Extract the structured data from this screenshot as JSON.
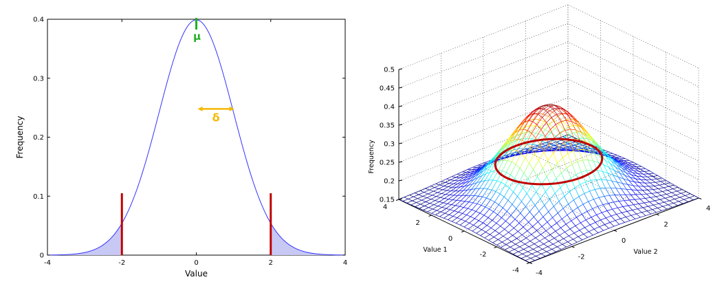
{
  "chart_data": [
    {
      "type": "line",
      "title": "",
      "xlabel": "Value",
      "ylabel": "Frequency",
      "xlim": [
        -4,
        4
      ],
      "ylim": [
        0,
        0.4
      ],
      "xticks": [
        "-4",
        "-2",
        "0",
        "2",
        "4"
      ],
      "yticks": [
        "0",
        "0.1",
        "0.2",
        "0.3",
        "0.4"
      ],
      "series": [
        {
          "function": "normal_pdf",
          "mean": 0,
          "sd": 1,
          "color": "#3232ff"
        }
      ],
      "shaded_tails": {
        "below": -2,
        "above": 2,
        "color": "#c8c8f5"
      },
      "vertical_markers": [
        {
          "x": -2,
          "y_top": 0.105,
          "color": "#c00000"
        },
        {
          "x": 2,
          "y_top": 0.105,
          "color": "#c00000"
        }
      ],
      "annotations": {
        "mu": {
          "label": "μ",
          "x": 0,
          "color": "#22b022"
        },
        "delta": {
          "label": "δ",
          "x_from": 0,
          "x_to": 1,
          "y": 0.248,
          "color": "#f5b800"
        }
      },
      "grid": false
    },
    {
      "type": "surface",
      "title": "",
      "xlabel": "Value 1",
      "ylabel": "Value 2",
      "zlabel": "Frequency",
      "xlim": [
        -4,
        4
      ],
      "ylim": [
        -4,
        4
      ],
      "zlim": [
        0.15,
        0.5
      ],
      "xticks": [
        "-4",
        "-2",
        "0",
        "2",
        "4"
      ],
      "yticks": [
        "-4",
        "-2",
        "0",
        "2",
        "4"
      ],
      "zticks": [
        "0.15",
        "0.2",
        "0.25",
        "0.3",
        "0.35",
        "0.4",
        "0.45",
        "0.5"
      ],
      "surface": {
        "function": "gaussian_2d",
        "peak": 0.4,
        "floor": 0.15,
        "sd": 1.6,
        "colormap": "jet",
        "grid_lines": 33
      },
      "ring": {
        "radius": 2,
        "z": 0.25,
        "color": "#c00000"
      },
      "grid": true
    }
  ]
}
